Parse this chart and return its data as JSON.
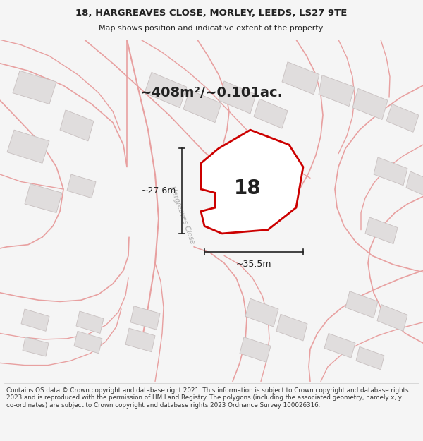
{
  "title_line1": "18, HARGREAVES CLOSE, MORLEY, LEEDS, LS27 9TE",
  "title_line2": "Map shows position and indicative extent of the property.",
  "area_text": "~408m²/~0.101ac.",
  "number_label": "18",
  "dim_width": "~35.5m",
  "dim_height": "~27.6m",
  "road_label": "Hargreaves Close",
  "footer_text": "Contains OS data © Crown copyright and database right 2021. This information is subject to Crown copyright and database rights 2023 and is reproduced with the permission of HM Land Registry. The polygons (including the associated geometry, namely x, y co-ordinates) are subject to Crown copyright and database rights 2023 Ordnance Survey 100026316.",
  "bg_color": "#f5f5f5",
  "map_bg": "#f0eeee",
  "plot_fill": "#ffffff",
  "plot_stroke": "#cc0000",
  "building_fill": "#e0dddd",
  "road_color": "#e8a0a0",
  "dim_color": "#222222",
  "text_color": "#222222",
  "title_fontsize": 9.5,
  "subtitle_fontsize": 8,
  "area_fontsize": 14,
  "number_fontsize": 20,
  "dim_fontsize": 9,
  "road_label_fontsize": 7
}
